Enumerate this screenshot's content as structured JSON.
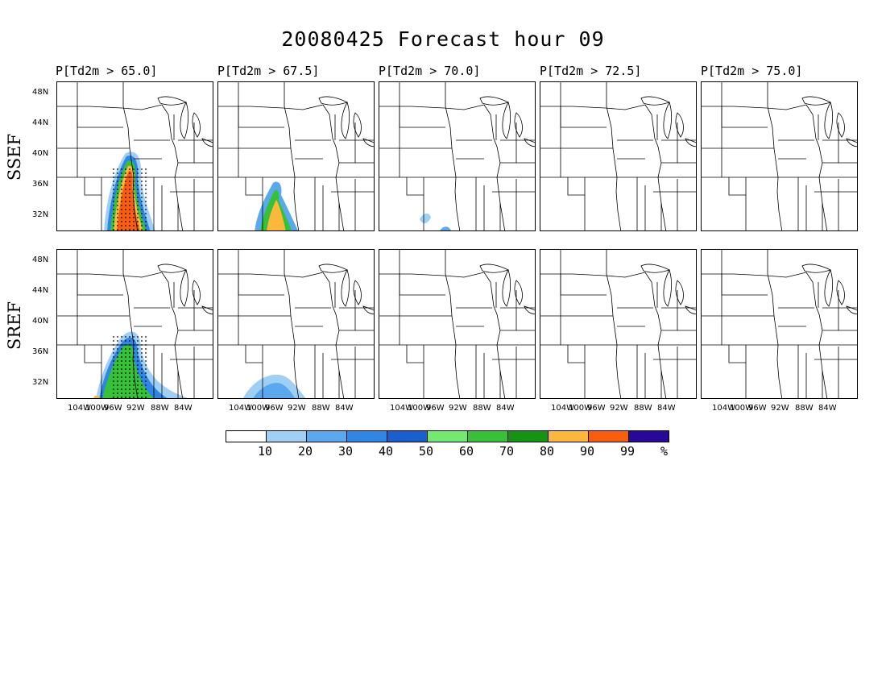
{
  "title": "20080425 Forecast hour 09",
  "column_titles": [
    "P[Td2m > 65.0]",
    "P[Td2m > 67.5]",
    "P[Td2m > 70.0]",
    "P[Td2m > 72.5]",
    "P[Td2m > 75.0]"
  ],
  "row_labels": [
    "SSEF",
    "SREF"
  ],
  "lat_labels": [
    "48N",
    "44N",
    "40N",
    "36N",
    "32N"
  ],
  "lon_labels": [
    "104W",
    "100W",
    "96W",
    "92W",
    "88W",
    "84W"
  ],
  "colorbar": {
    "labels": [
      "10",
      "20",
      "30",
      "40",
      "50",
      "60",
      "70",
      "80",
      "90",
      "99",
      "%"
    ],
    "colors": [
      "#ffffff",
      "#9ed0f5",
      "#5aa8ee",
      "#2f86e6",
      "#1a5fcf",
      "#72ea72",
      "#36c236",
      "#139413",
      "#fdb73a",
      "#fb5e0a",
      "#28089a"
    ]
  },
  "chart_data": {
    "type": "heatmap",
    "description_units": "probability (%)",
    "rows": [
      "SSEF",
      "SREF"
    ],
    "columns": [
      "P[Td2m > 65.0]",
      "P[Td2m > 67.5]",
      "P[Td2m > 70.0]",
      "P[Td2m > 72.5]",
      "P[Td2m > 75.0]"
    ],
    "levels": [
      10,
      20,
      30,
      40,
      50,
      60,
      70,
      80,
      90,
      99
    ],
    "lat_ticks": [
      48,
      44,
      40,
      36,
      32
    ],
    "lon_ticks": [
      -104,
      -100,
      -96,
      -92,
      -88,
      -84
    ],
    "extent": {
      "lon": [
        -107,
        -83
      ],
      "lat": [
        30,
        50
      ]
    }
  }
}
